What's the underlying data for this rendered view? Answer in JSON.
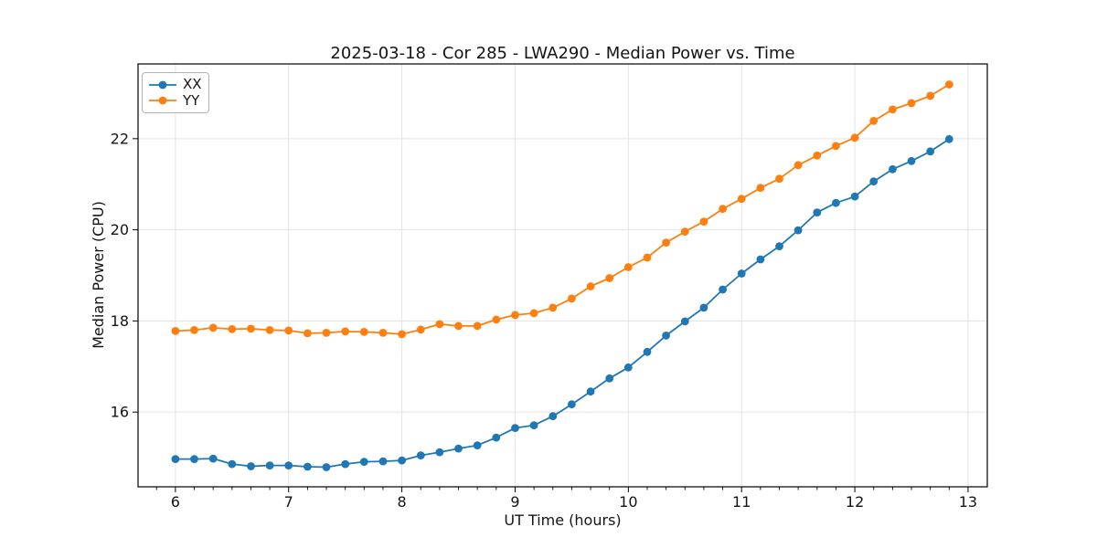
{
  "chart": {
    "title": "2025-03-18 - Cor 285 - LWA290 - Median Power vs. Time",
    "xlabel": "UT Time (hours)",
    "ylabel": "Median Power (CPU)"
  },
  "colors": {
    "background": "#ffffff",
    "grid": "#e3e3e3",
    "spine": "#000000",
    "text": "#141414",
    "series_xx": "#1f77b4",
    "series_yy": "#ff7f0e"
  },
  "chart_data": {
    "type": "line",
    "title": "2025-03-18 - Cor 285 - LWA290 - Median Power vs. Time",
    "xlabel": "UT Time (hours)",
    "ylabel": "Median Power (CPU)",
    "xlim": [
      5.67,
      13.17
    ],
    "ylim": [
      14.36,
      23.64
    ],
    "x_major_ticks": [
      6,
      7,
      8,
      9,
      10,
      11,
      12,
      13
    ],
    "y_major_ticks": [
      16,
      18,
      20,
      22
    ],
    "x_minor_step": 0.166667,
    "grid": true,
    "legend_position": "upper left",
    "marker": "circle",
    "x": [
      6.0,
      6.1667,
      6.3333,
      6.5,
      6.6667,
      6.8333,
      7.0,
      7.1667,
      7.3333,
      7.5,
      7.6667,
      7.8333,
      8.0,
      8.1667,
      8.3333,
      8.5,
      8.6667,
      8.8333,
      9.0,
      9.1667,
      9.3333,
      9.5,
      9.6667,
      9.8333,
      10.0,
      10.1667,
      10.3333,
      10.5,
      10.6667,
      10.8333,
      11.0,
      11.1667,
      11.3333,
      11.5,
      11.6667,
      11.8333,
      12.0,
      12.1667,
      12.3333,
      12.5,
      12.6667,
      12.8333
    ],
    "series": [
      {
        "name": "XX",
        "color": "#1f77b4",
        "values": [
          14.97,
          14.97,
          14.98,
          14.86,
          14.81,
          14.83,
          14.83,
          14.8,
          14.79,
          14.86,
          14.91,
          14.92,
          14.94,
          15.05,
          15.12,
          15.2,
          15.27,
          15.44,
          15.65,
          15.71,
          15.91,
          16.17,
          16.45,
          16.74,
          16.98,
          17.32,
          17.68,
          17.99,
          18.29,
          18.69,
          19.04,
          19.35,
          19.64,
          19.99,
          20.38,
          20.59,
          20.73,
          21.06,
          21.33,
          21.51,
          21.72,
          21.99
        ]
      },
      {
        "name": "YY",
        "color": "#ff7f0e",
        "values": [
          17.78,
          17.8,
          17.85,
          17.82,
          17.83,
          17.8,
          17.79,
          17.73,
          17.74,
          17.77,
          17.76,
          17.74,
          17.71,
          17.81,
          17.93,
          17.89,
          17.89,
          18.03,
          18.13,
          18.17,
          18.29,
          18.49,
          18.76,
          18.94,
          19.18,
          19.39,
          19.72,
          19.96,
          20.18,
          20.46,
          20.68,
          20.92,
          21.12,
          21.42,
          21.63,
          21.84,
          22.02,
          22.39,
          22.64,
          22.78,
          22.94,
          23.19
        ]
      }
    ]
  }
}
